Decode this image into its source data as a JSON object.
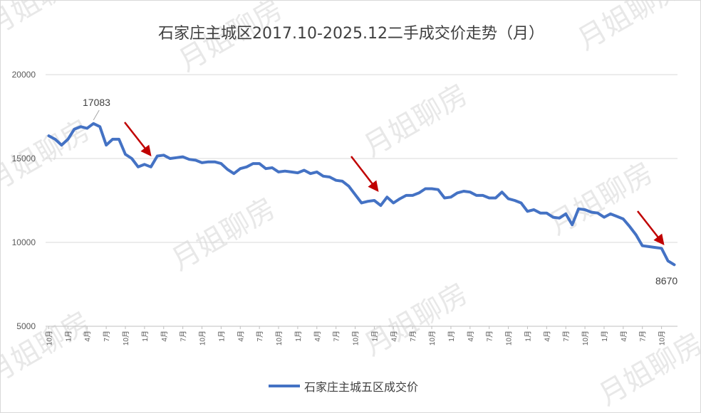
{
  "watermark": "月姐聊房",
  "chart_data": {
    "type": "line",
    "title": "石家庄主城区2017.10-2025.12二手成交价走势（月）",
    "xlabel": "",
    "ylabel": "",
    "ylim": [
      5000,
      20000
    ],
    "yticks": [
      5000,
      10000,
      15000,
      20000
    ],
    "grid": true,
    "legend_position": "bottom",
    "x": [
      "2017-10",
      "2017-11",
      "2017-12",
      "2018-01",
      "2018-02",
      "2018-03",
      "2018-04",
      "2018-05",
      "2018-06",
      "2018-07",
      "2018-08",
      "2018-09",
      "2018-10",
      "2018-11",
      "2018-12",
      "2019-01",
      "2019-02",
      "2019-03",
      "2019-04",
      "2019-05",
      "2019-06",
      "2019-07",
      "2019-08",
      "2019-09",
      "2019-10",
      "2019-11",
      "2019-12",
      "2020-01",
      "2020-02",
      "2020-03",
      "2020-04",
      "2020-05",
      "2020-06",
      "2020-07",
      "2020-08",
      "2020-09",
      "2020-10",
      "2020-11",
      "2020-12",
      "2021-01",
      "2021-02",
      "2021-03",
      "2021-04",
      "2021-05",
      "2021-06",
      "2021-07",
      "2021-08",
      "2021-09",
      "2021-10",
      "2021-11",
      "2021-12",
      "2022-01",
      "2022-02",
      "2022-03",
      "2022-04",
      "2022-05",
      "2022-06",
      "2022-07",
      "2022-08",
      "2022-09",
      "2022-10",
      "2022-11",
      "2022-12",
      "2023-01",
      "2023-02",
      "2023-03",
      "2023-04",
      "2023-05",
      "2023-06",
      "2023-07",
      "2023-08",
      "2023-09",
      "2023-10",
      "2023-11",
      "2023-12",
      "2024-01",
      "2024-02",
      "2024-03",
      "2024-04",
      "2024-05",
      "2024-06",
      "2024-07",
      "2024-08",
      "2024-09",
      "2024-10",
      "2024-11",
      "2024-12",
      "2025-01",
      "2025-02",
      "2025-03",
      "2025-04",
      "2025-05",
      "2025-06",
      "2025-07",
      "2025-08",
      "2025-09",
      "2025-10",
      "2025-11",
      "2025-12"
    ],
    "tick_labels": [
      "10月",
      "1月",
      "4月",
      "7月",
      "10月",
      "1月",
      "4月",
      "7月",
      "10月",
      "1月",
      "4月",
      "7月",
      "10月",
      "1月",
      "4月",
      "7月",
      "10月",
      "1月",
      "4月",
      "7月",
      "10月",
      "1月",
      "4月",
      "7月",
      "10月",
      "1月",
      "4月",
      "7月",
      "10月",
      "1月",
      "4月",
      "7月",
      "10月"
    ],
    "series": [
      {
        "name": "石家庄主城五区成交价",
        "color": "#4472c4",
        "values": [
          16350,
          16150,
          15800,
          16150,
          16750,
          16900,
          16800,
          17083,
          16900,
          15800,
          16150,
          16150,
          15250,
          15000,
          14500,
          14650,
          14500,
          15150,
          15200,
          15000,
          15050,
          15100,
          14950,
          14900,
          14750,
          14800,
          14800,
          14700,
          14350,
          14100,
          14400,
          14500,
          14700,
          14700,
          14400,
          14450,
          14200,
          14250,
          14200,
          14150,
          14300,
          14100,
          14200,
          13950,
          13900,
          13700,
          13650,
          13350,
          12850,
          12350,
          12450,
          12500,
          12200,
          12700,
          12350,
          12600,
          12800,
          12800,
          12950,
          13200,
          13200,
          13150,
          12650,
          12700,
          12950,
          13050,
          13000,
          12800,
          12800,
          12650,
          12650,
          13000,
          12600,
          12500,
          12350,
          11850,
          11950,
          11750,
          11750,
          11500,
          11450,
          11700,
          11050,
          12000,
          11950,
          11800,
          11750,
          11500,
          11700,
          11550,
          11400,
          10950,
          10450,
          9800,
          9750,
          9700,
          9650,
          8900,
          8670
        ]
      }
    ],
    "annotations": [
      {
        "text": "17083",
        "x": "2018-05",
        "y": 17083
      },
      {
        "text": "8670",
        "x": "2025-12",
        "y": 8670
      }
    ],
    "arrow_color": "#c00000"
  }
}
